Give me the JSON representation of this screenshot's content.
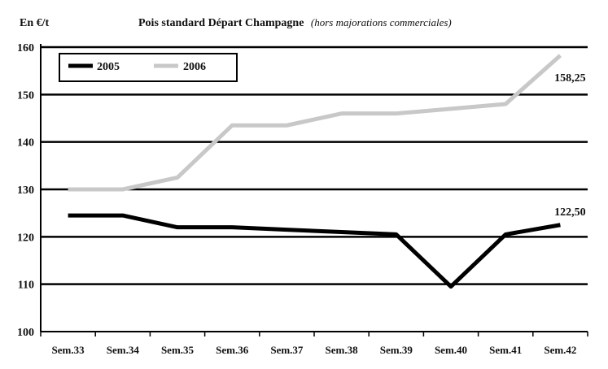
{
  "chart_data": {
    "type": "line",
    "title": "Pois standard Départ Champagne",
    "subtitle": "(hors majorations commerciales)",
    "ylabel": "En €/t",
    "xlabel": "",
    "categories": [
      "Sem.33",
      "Sem.34",
      "Sem.35",
      "Sem.36",
      "Sem.37",
      "Sem.38",
      "Sem.39",
      "Sem.40",
      "Sem.41",
      "Sem.42"
    ],
    "ylim": [
      100,
      160
    ],
    "yticks": [
      "100",
      "110",
      "120",
      "130",
      "140",
      "150",
      "160"
    ],
    "grid": "horizontal",
    "legend_position": "top-left",
    "series": [
      {
        "name": "2005",
        "color": "#000000",
        "values": [
          124.5,
          124.5,
          122,
          122,
          121.5,
          121,
          120.5,
          109.5,
          120.5,
          122.5
        ],
        "end_label": "122,50"
      },
      {
        "name": "2006",
        "color": "#c8c8c8",
        "values": [
          130,
          130,
          132.5,
          143.5,
          143.5,
          146,
          146,
          147,
          148,
          158.25
        ],
        "end_label": "158,25"
      }
    ]
  }
}
